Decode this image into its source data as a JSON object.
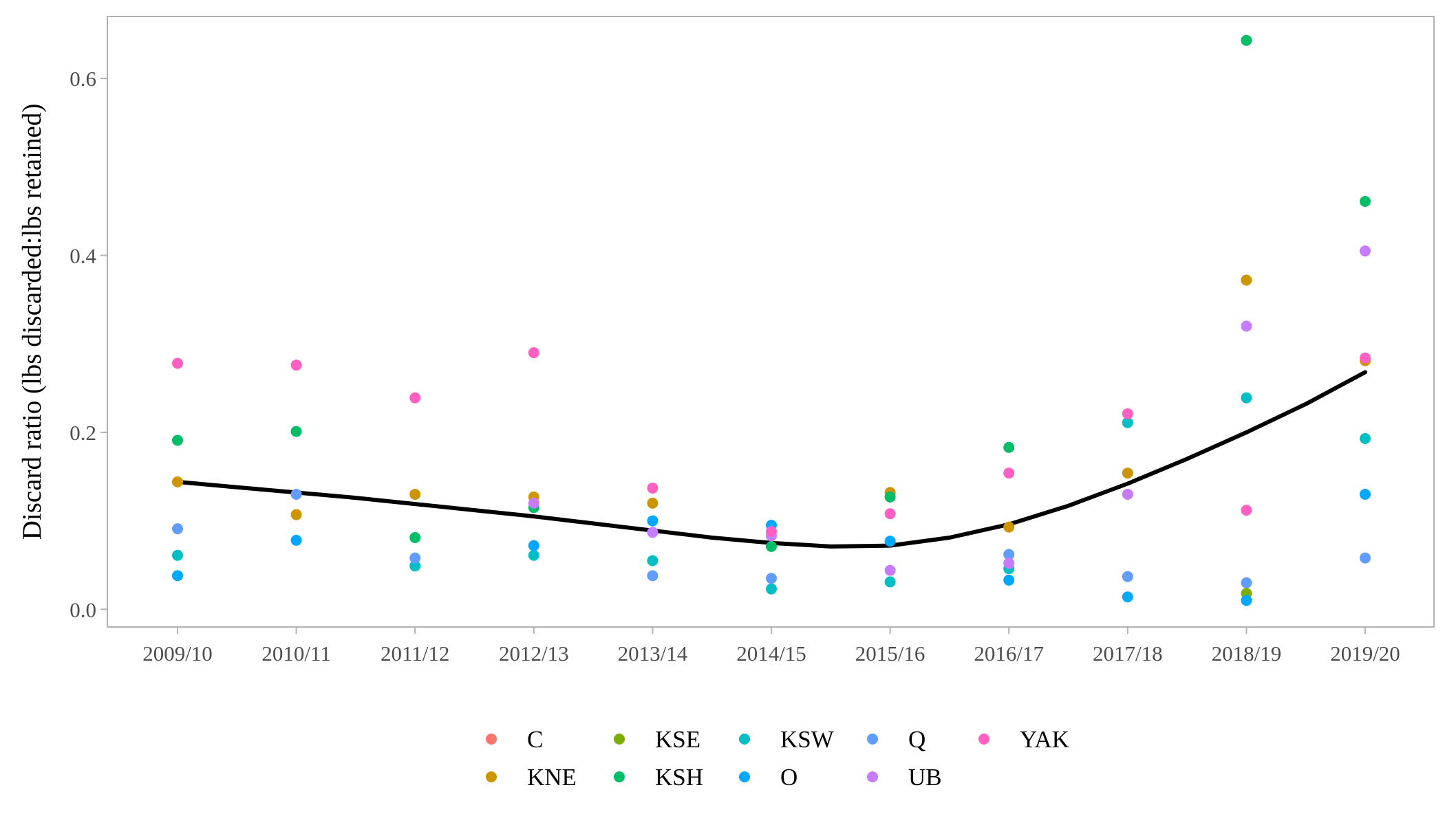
{
  "chart_data": {
    "type": "scatter",
    "title": "",
    "xlabel": "",
    "ylabel": "Discard ratio (lbs discarded:lbs retained)",
    "categories": [
      "2009/10",
      "2010/11",
      "2011/12",
      "2012/13",
      "2013/14",
      "2014/15",
      "2015/16",
      "2016/17",
      "2017/18",
      "2018/19",
      "2019/20"
    ],
    "ylim": [
      -0.02,
      0.67
    ],
    "yticks": [
      0.0,
      0.2,
      0.4,
      0.6
    ],
    "ytick_labels": [
      "0.0",
      "0.2",
      "0.4",
      "0.6"
    ],
    "grid": false,
    "legend_position": "bottom",
    "series": [
      {
        "name": "C",
        "color": "#F8766D",
        "values": [
          null,
          null,
          null,
          null,
          null,
          null,
          null,
          null,
          null,
          null,
          null
        ]
      },
      {
        "name": "KNE",
        "color": "#CD9600",
        "values": [
          0.144,
          0.107,
          0.13,
          0.127,
          0.12,
          null,
          0.132,
          0.093,
          0.154,
          0.372,
          0.281
        ]
      },
      {
        "name": "KSE",
        "color": "#7CAE00",
        "values": [
          null,
          null,
          null,
          null,
          null,
          null,
          null,
          null,
          null,
          0.018,
          null
        ]
      },
      {
        "name": "KSH",
        "color": "#00BE67",
        "values": [
          0.191,
          0.201,
          0.081,
          0.115,
          null,
          0.071,
          0.127,
          0.183,
          null,
          0.643,
          0.461
        ]
      },
      {
        "name": "KSW",
        "color": "#00BFC4",
        "values": [
          0.061,
          null,
          0.049,
          0.061,
          0.055,
          0.023,
          0.031,
          0.046,
          0.211,
          0.239,
          0.193
        ]
      },
      {
        "name": "O",
        "color": "#00A9FF",
        "values": [
          0.038,
          0.078,
          null,
          0.072,
          0.1,
          0.095,
          0.077,
          0.033,
          0.014,
          0.01,
          0.13
        ]
      },
      {
        "name": "Q",
        "color": "#619CFF",
        "values": [
          0.091,
          0.13,
          0.058,
          null,
          0.038,
          0.035,
          null,
          0.062,
          0.037,
          0.03,
          0.058
        ]
      },
      {
        "name": "UB",
        "color": "#C77CFF",
        "values": [
          null,
          null,
          null,
          0.12,
          0.087,
          0.083,
          0.044,
          0.052,
          0.13,
          0.32,
          0.405
        ]
      },
      {
        "name": "YAK",
        "color": "#FF61C3",
        "values": [
          0.278,
          0.276,
          0.239,
          0.29,
          0.137,
          0.088,
          0.108,
          0.154,
          0.221,
          0.112,
          0.284
        ]
      }
    ],
    "trend": {
      "color": "#000000",
      "x": [
        0,
        0.5,
        1,
        1.5,
        2,
        2.5,
        3,
        3.5,
        4,
        4.5,
        5,
        5.5,
        6,
        6.5,
        7,
        7.5,
        8,
        8.5,
        9,
        9.5,
        10
      ],
      "y": [
        0.144,
        0.138,
        0.132,
        0.126,
        0.119,
        0.112,
        0.105,
        0.097,
        0.089,
        0.081,
        0.075,
        0.071,
        0.072,
        0.081,
        0.096,
        0.117,
        0.142,
        0.17,
        0.2,
        0.232,
        0.268
      ]
    }
  }
}
